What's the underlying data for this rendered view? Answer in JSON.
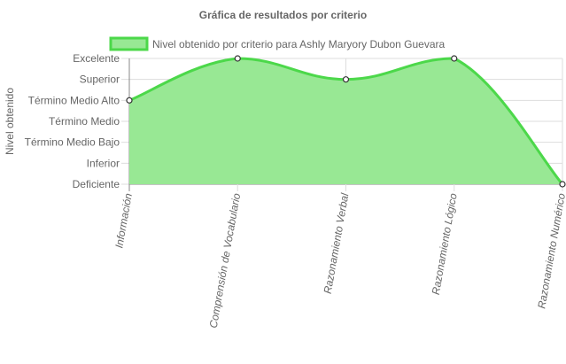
{
  "chart_data": {
    "type": "area",
    "title": "Gráfica de resultados por criterio",
    "xlabel": "",
    "ylabel": "Nivel obtenido",
    "categories": [
      "Información",
      "Comprensión de Vocabulario",
      "Razonamiento Verbal",
      "Razonamiento Lógico",
      "Razonamiento Numérico"
    ],
    "y_levels": [
      "Deficiente",
      "Inferior",
      "Término Medio Bajo",
      "Término Medio",
      "Término Medio Alto",
      "Superior",
      "Excelente"
    ],
    "ylim": [
      0,
      6
    ],
    "series": [
      {
        "name": "Nivel obtenido por criterio para Ashly Maryory Dubon Guevara",
        "values": [
          4,
          6,
          5,
          6,
          0
        ],
        "value_labels": [
          "Término Medio Alto",
          "Excelente",
          "Superior",
          "Excelente",
          "Deficiente"
        ]
      }
    ],
    "legend": "top",
    "grid": true,
    "colors": {
      "line": "#4cd84a",
      "fill": "#98e894",
      "point_fill": "#ffffff",
      "point_stroke": "#333333",
      "grid": "#dddddd",
      "axis": "#888888"
    }
  }
}
